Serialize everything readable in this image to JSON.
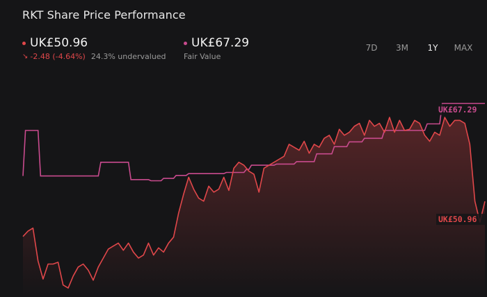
{
  "title": "RKT Share Price Performance",
  "price": {
    "value": "UK£50.96",
    "change": "-2.48 (-4.64%)",
    "undervalued": "24.3% undervalued"
  },
  "fair_value": {
    "value": "UK£67.29",
    "label": "Fair Value"
  },
  "ranges": [
    "7D",
    "3M",
    "1Y",
    "MAX"
  ],
  "active_range": "1Y",
  "colors": {
    "price": "#e0474a",
    "fair_value": "#c94b8e",
    "background": "#151517"
  },
  "chart_data": {
    "type": "line",
    "title": "RKT Share Price Performance",
    "xlabel": "",
    "ylabel": "",
    "ylim": [
      35,
      73
    ],
    "grid": false,
    "end_labels": {
      "fair_value": "UK£67.29",
      "price": "UK£50.96"
    },
    "series": [
      {
        "name": "Fair Value",
        "kind": "step",
        "x": [
          0,
          1,
          6,
          7,
          30,
          31,
          42,
          43,
          50,
          51,
          55,
          56,
          60,
          61,
          65,
          66,
          80,
          81,
          88,
          89,
          90,
          91,
          100,
          101,
          108,
          109,
          116,
          117,
          123,
          124,
          129,
          130,
          135,
          136,
          143,
          144,
          160,
          161,
          166,
          167,
          176,
          177,
          183,
          184
        ],
        "values": [
          55.2,
          62.8,
          62.8,
          55.2,
          55.2,
          57.5,
          57.5,
          54.6,
          54.6,
          54.4,
          54.4,
          54.8,
          54.8,
          55.3,
          55.3,
          55.6,
          55.6,
          55.8,
          55.8,
          56.3,
          56.3,
          57.0,
          57.0,
          57.2,
          57.2,
          57.6,
          57.6,
          58.9,
          58.9,
          60.1,
          60.1,
          60.9,
          60.9,
          61.5,
          61.5,
          62.8,
          62.8,
          63.9,
          63.9,
          67.3,
          67.3,
          67.3,
          67.3,
          67.3
        ]
      },
      {
        "name": "Price",
        "kind": "line",
        "x": [
          0,
          2,
          4,
          6,
          8,
          10,
          12,
          14,
          16,
          18,
          20,
          22,
          24,
          26,
          28,
          30,
          32,
          34,
          36,
          38,
          40,
          42,
          44,
          46,
          48,
          50,
          52,
          54,
          56,
          58,
          60,
          62,
          64,
          66,
          68,
          70,
          72,
          74,
          76,
          78,
          80,
          82,
          84,
          86,
          88,
          90,
          92,
          94,
          96,
          98,
          100,
          102,
          104,
          106,
          108,
          110,
          112,
          114,
          116,
          118,
          120,
          122,
          124,
          126,
          128,
          130,
          132,
          134,
          136,
          138,
          140,
          142,
          144,
          146,
          148,
          150,
          152,
          154,
          156,
          158,
          160,
          162,
          164,
          166,
          168,
          170,
          172,
          174,
          176,
          178,
          180,
          182,
          184
        ],
        "values": [
          45.1,
          46.0,
          46.5,
          41.0,
          38.0,
          40.5,
          40.5,
          40.8,
          37.0,
          36.5,
          38.5,
          40.0,
          40.5,
          39.5,
          37.8,
          40.0,
          41.5,
          43.0,
          43.5,
          44.0,
          42.8,
          44.0,
          42.5,
          41.5,
          42.0,
          44.0,
          42.0,
          43.2,
          42.5,
          44.0,
          45.0,
          49.0,
          52.2,
          55.0,
          53.0,
          51.5,
          51.0,
          53.5,
          52.5,
          53.0,
          55.0,
          52.8,
          56.5,
          57.5,
          57.0,
          56.0,
          55.5,
          52.5,
          56.5,
          57.0,
          57.5,
          58.0,
          58.5,
          60.5,
          60.0,
          59.5,
          61.0,
          59.0,
          60.5,
          60.0,
          61.5,
          62.0,
          60.5,
          63.0,
          62.0,
          62.5,
          63.5,
          64.0,
          62.0,
          64.5,
          63.5,
          64.0,
          62.5,
          65.0,
          62.5,
          64.5,
          62.8,
          63.0,
          64.5,
          64.0,
          62.0,
          61.0,
          62.5,
          62.0,
          65.0,
          63.5,
          64.5,
          64.5,
          64.0,
          60.5,
          51.0,
          47.5,
          50.96
        ]
      }
    ]
  }
}
